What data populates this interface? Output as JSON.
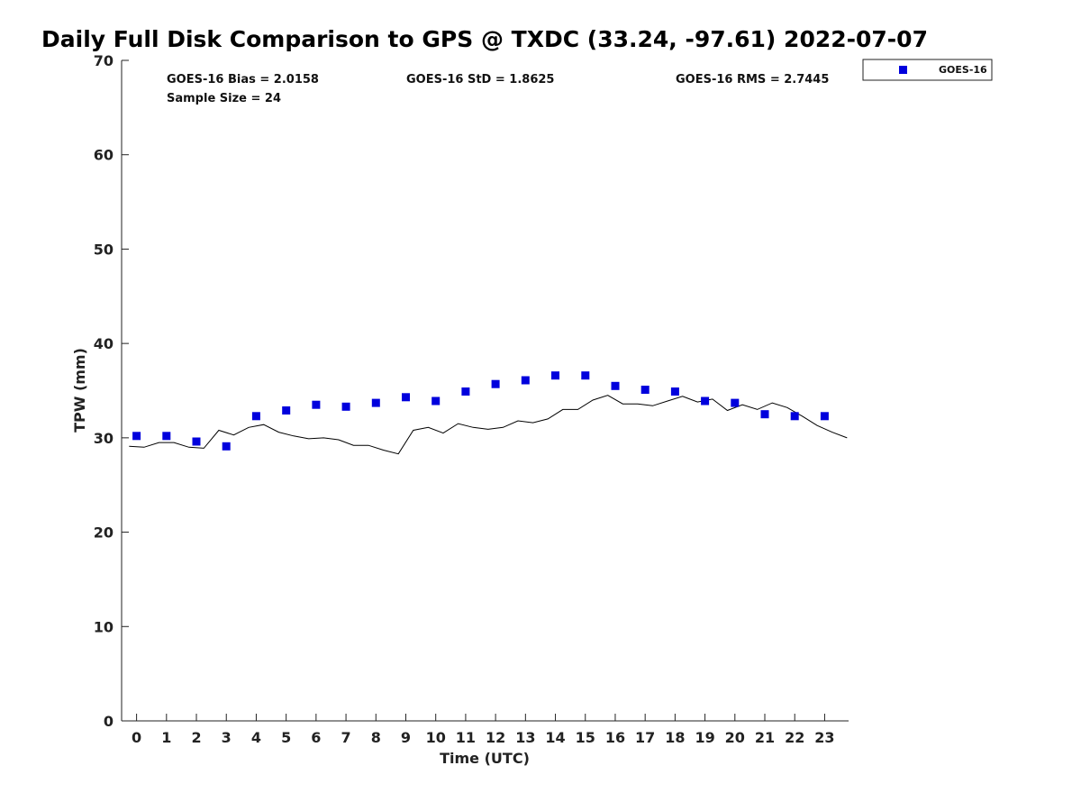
{
  "chart_data": {
    "type": "scatter",
    "title": "Daily Full Disk Comparison to GPS @ TXDC (33.24, -97.61) 2022-07-07",
    "xlabel": "Time (UTC)",
    "ylabel": "TPW (mm)",
    "xlim": [
      -0.5,
      23.8
    ],
    "ylim": [
      0,
      70
    ],
    "xticks": [
      "0",
      "1",
      "2",
      "3",
      "4",
      "5",
      "6",
      "7",
      "8",
      "9",
      "10",
      "11",
      "12",
      "13",
      "14",
      "15",
      "16",
      "17",
      "18",
      "19",
      "20",
      "21",
      "22",
      "23"
    ],
    "yticks": [
      "0",
      "10",
      "20",
      "30",
      "40",
      "50",
      "60",
      "70"
    ],
    "grid": false,
    "legend_position": "top-right, outside plot",
    "stats": {
      "bias": "GOES-16 Bias = 2.0158",
      "std": "GOES-16 StD = 1.8625",
      "rms": "GOES-16 RMS = 2.7445",
      "sample": "Sample Size = 24"
    },
    "series": [
      {
        "name": "GOES-16",
        "kind": "scatter",
        "marker": "square",
        "color": "#0000dd",
        "x": [
          0,
          1,
          2,
          3,
          4,
          5,
          6,
          7,
          8,
          9,
          10,
          11,
          12,
          13,
          14,
          15,
          16,
          17,
          18,
          19,
          20,
          21,
          22,
          23
        ],
        "y": [
          30.2,
          30.2,
          29.6,
          29.1,
          32.3,
          32.9,
          33.5,
          33.3,
          33.7,
          34.3,
          33.9,
          34.9,
          35.7,
          36.1,
          36.6,
          36.6,
          35.5,
          35.1,
          34.9,
          33.9,
          33.7,
          32.5,
          32.3,
          32.3
        ]
      },
      {
        "kind": "line",
        "color": "#000000",
        "x": [
          -0.25,
          0.25,
          0.75,
          1.25,
          1.75,
          2.25,
          2.75,
          3.25,
          3.75,
          4.25,
          4.75,
          5.25,
          5.75,
          6.25,
          6.75,
          7.25,
          7.75,
          8.25,
          8.75,
          9.25,
          9.75,
          10.25,
          10.75,
          11.25,
          11.75,
          12.25,
          12.75,
          13.25,
          13.75,
          14.25,
          14.75,
          15.25,
          15.75,
          16.25,
          16.75,
          17.25,
          17.75,
          18.25,
          18.75,
          19.25,
          19.75,
          20.25,
          20.75,
          21.25,
          21.75,
          22.25,
          22.75,
          23.25,
          23.75
        ],
        "y": [
          29.1,
          29.0,
          29.5,
          29.5,
          29.0,
          28.9,
          30.8,
          30.3,
          31.1,
          31.4,
          30.6,
          30.2,
          29.9,
          30.0,
          29.8,
          29.2,
          29.2,
          28.7,
          28.3,
          30.8,
          31.1,
          30.5,
          31.5,
          31.1,
          30.9,
          31.1,
          31.8,
          31.6,
          32.0,
          33.0,
          33.0,
          34.0,
          34.5,
          33.6,
          33.6,
          33.4,
          33.9,
          34.4,
          33.8,
          34.1,
          32.9,
          33.5,
          33.0,
          33.7,
          33.2,
          32.3,
          31.3,
          30.6,
          30.0
        ]
      }
    ]
  }
}
